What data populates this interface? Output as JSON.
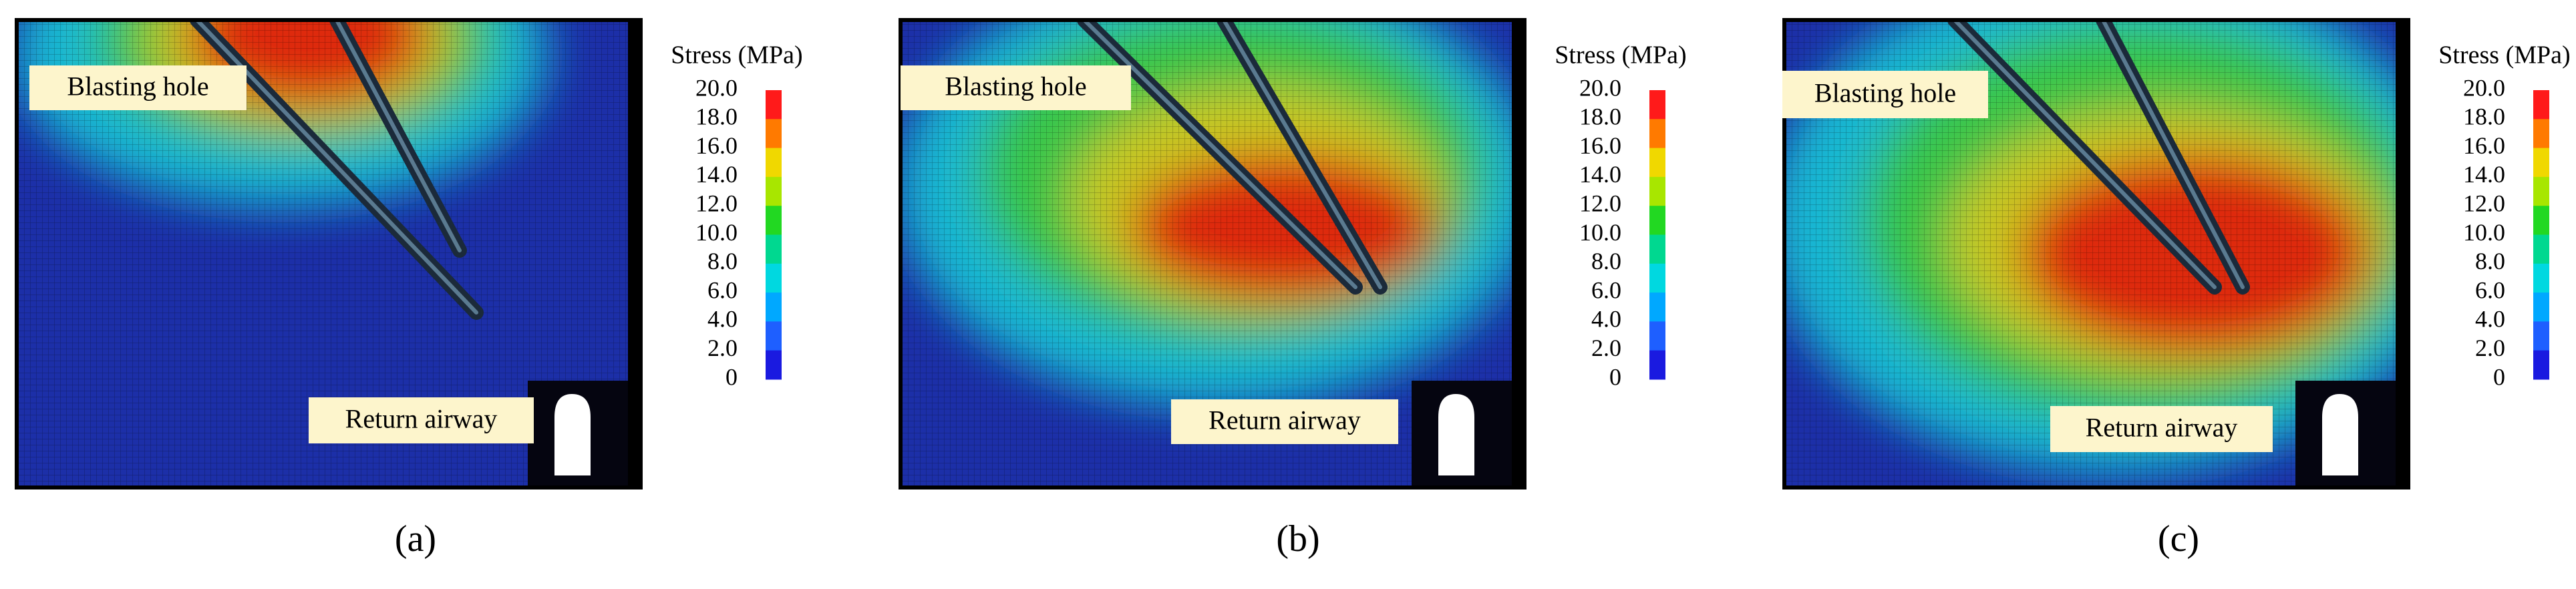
{
  "panels": [
    {
      "caption": "(a)",
      "blasting_label": "Blasting hole",
      "airway_label": "Return airway",
      "legend": {
        "title": "Stress (MPa)",
        "ticks": [
          "20.0",
          "18.0",
          "16.0",
          "14.0",
          "12.0",
          "10.0",
          "8.0",
          "6.0",
          "4.0",
          "2.0",
          "0"
        ]
      }
    },
    {
      "caption": "(b)",
      "blasting_label": "Blasting hole",
      "airway_label": "Return airway",
      "legend": {
        "title": "Stress (MPa)",
        "ticks": [
          "20.0",
          "18.0",
          "16.0",
          "14.0",
          "12.0",
          "10.0",
          "8.0",
          "6.0",
          "4.0",
          "2.0",
          "0"
        ]
      }
    },
    {
      "caption": "(c)",
      "blasting_label": "Blasting hole",
      "airway_label": "Return airway",
      "legend": {
        "title": "Stress (MPa)",
        "ticks": [
          "20.0",
          "18.0",
          "16.0",
          "14.0",
          "12.0",
          "10.0",
          "8.0",
          "6.0",
          "4.0",
          "2.0",
          "0"
        ]
      }
    }
  ]
}
